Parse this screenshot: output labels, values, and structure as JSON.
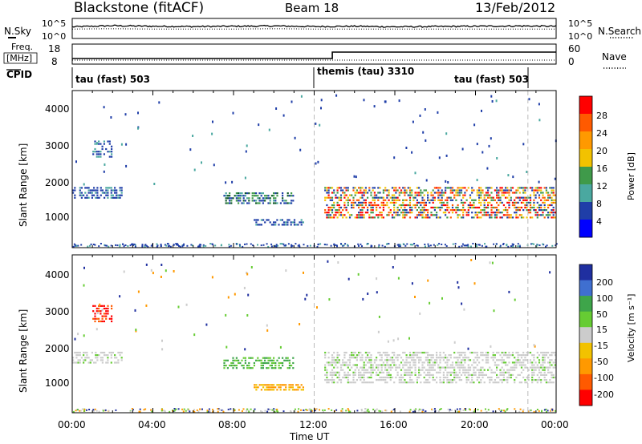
{
  "header": {
    "station": "Blackstone (fitACF)",
    "beam": "Beam 18",
    "date": "13/Feb/2012"
  },
  "noise_panel": {
    "left_label": "N.Sky",
    "left_ticks": [
      "10^5",
      "10^0"
    ],
    "right_ticks": [
      "10^5",
      "10^0"
    ],
    "right_label": "N.Search"
  },
  "freq_panel": {
    "left_label_line1": "Freq.",
    "left_label_line2": "[MHz]",
    "left_ticks": [
      "18",
      "8"
    ],
    "right_ticks": [
      "60",
      "0"
    ],
    "right_label": "Nave"
  },
  "cpid": {
    "label": "CPID",
    "segments": [
      {
        "text": "tau (fast) 503"
      },
      {
        "text": "themis (tau) 3310"
      },
      {
        "text": "tau (fast) 503"
      }
    ]
  },
  "x_axis": {
    "label": "Time UT",
    "ticks": [
      "00:00",
      "04:00",
      "08:00",
      "12:00",
      "16:00",
      "20:00",
      "00:00"
    ]
  },
  "power_panel": {
    "ylabel": "Slant Range [km]",
    "yticks": [
      "4000",
      "3000",
      "2000",
      "1000"
    ],
    "colorbar_label": "Power [dB]",
    "colorbar_ticks": [
      "28",
      "24",
      "20",
      "16",
      "12",
      "8",
      "4"
    ],
    "colorbar_colors": [
      "#ff0000",
      "#ff5a00",
      "#ff9900",
      "#f2c200",
      "#3f9a4a",
      "#4aa8a0",
      "#1f3ea8",
      "#0000ff"
    ]
  },
  "velocity_panel": {
    "ylabel": "Slant Range [km]",
    "yticks": [
      "4000",
      "3000",
      "2000",
      "1000"
    ],
    "colorbar_label": "Velocity [m s⁻¹]",
    "colorbar_ticks": [
      "200",
      "100",
      "50",
      "15",
      "-15",
      "-50",
      "-100",
      "-200"
    ],
    "colorbar_colors": [
      "#1f2fa0",
      "#3f6fd0",
      "#3ea54a",
      "#66cc33",
      "#cccccc",
      "#f2c200",
      "#ff9900",
      "#ff5a00",
      "#ff0000"
    ]
  },
  "chart_data": [
    {
      "type": "line",
      "title": "N.Sky / N.Search",
      "x": [
        0,
        2,
        4,
        6,
        8,
        10,
        12,
        14,
        16,
        18,
        20,
        22,
        24
      ],
      "series": [
        {
          "name": "N.Sky",
          "values": [
            3.2,
            3.6,
            3.4,
            3.3,
            3.4,
            3.5,
            3.3,
            3.4,
            3.2,
            3.3,
            3.4,
            3.5,
            3.4
          ]
        },
        {
          "name": "N.Search",
          "values": [
            3.0,
            3.1,
            3.0,
            3.0,
            3.0,
            3.1,
            3.0,
            3.0,
            3.0,
            3.0,
            3.0,
            3.0,
            3.0
          ]
        }
      ],
      "xlim": [
        0,
        24
      ],
      "ylim": [
        0,
        5
      ]
    },
    {
      "type": "line",
      "title": "Freq. / Nave",
      "x": [
        0,
        12.9,
        12.9,
        24
      ],
      "series": [
        {
          "name": "Freq. [MHz]",
          "values": [
            10.5,
            10.5,
            14.5,
            14.5
          ]
        },
        {
          "name": "Nave",
          "values": [
            0,
            0,
            0,
            0
          ]
        }
      ],
      "xlim": [
        0,
        24
      ]
    },
    {
      "type": "heatmap",
      "title": "Power [dB]",
      "xlabel": "Time UT",
      "ylabel": "Slant Range [km]",
      "xlim": [
        0,
        24
      ],
      "ylim": [
        200,
        4600
      ],
      "features": [
        {
          "time_start": 0.0,
          "time_end": 2.5,
          "range_start": 1550,
          "range_end": 1900,
          "power_db": 8
        },
        {
          "time_start": 1.0,
          "time_end": 2.0,
          "range_start": 2700,
          "range_end": 3200,
          "power_db": 8
        },
        {
          "time_start": 7.5,
          "time_end": 11.0,
          "range_start": 1400,
          "range_end": 1750,
          "power_db": 12
        },
        {
          "time_start": 9.0,
          "time_end": 11.5,
          "range_start": 800,
          "range_end": 1000,
          "power_db": 8
        },
        {
          "time_start": 12.5,
          "time_end": 24.0,
          "range_start": 1000,
          "range_end": 1900,
          "power_db": 20
        }
      ]
    },
    {
      "type": "heatmap",
      "title": "Velocity [m s^-1]",
      "xlabel": "Time UT",
      "ylabel": "Slant Range [km]",
      "xlim": [
        0,
        24
      ],
      "ylim": [
        200,
        4600
      ],
      "features": [
        {
          "time_start": 0.0,
          "time_end": 2.5,
          "range_start": 1550,
          "range_end": 1900,
          "velocity": 0
        },
        {
          "time_start": 1.0,
          "time_end": 2.0,
          "range_start": 2700,
          "range_end": 3200,
          "velocity": -200
        },
        {
          "time_start": 7.5,
          "time_end": 11.0,
          "range_start": 1400,
          "range_end": 1750,
          "velocity": 50
        },
        {
          "time_start": 9.0,
          "time_end": 11.5,
          "range_start": 800,
          "range_end": 1000,
          "velocity": -50
        },
        {
          "time_start": 12.5,
          "time_end": 24.0,
          "range_start": 1000,
          "range_end": 1900,
          "velocity": 0
        }
      ]
    }
  ]
}
